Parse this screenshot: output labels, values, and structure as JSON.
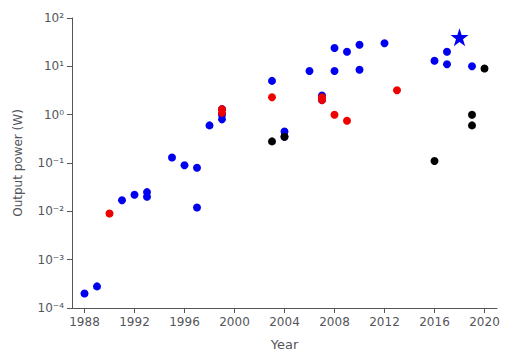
{
  "chart_data": {
    "type": "scatter",
    "xlabel": "Year",
    "ylabel": "Output power (W)",
    "log": "y",
    "grid": false,
    "xlim": [
      1987,
      2021
    ],
    "ylim": [
      0.0001,
      100
    ],
    "xticks": [
      1988,
      1992,
      1996,
      2000,
      2004,
      2008,
      2012,
      2016,
      2020
    ],
    "yticks": [
      {
        "value": 0.0001,
        "label": "10⁻⁴"
      },
      {
        "value": 0.001,
        "label": "10⁻³"
      },
      {
        "value": 0.01,
        "label": "10⁻²"
      },
      {
        "value": 0.1,
        "label": "10⁻¹"
      },
      {
        "value": 1,
        "label": "10⁰"
      },
      {
        "value": 10,
        "label": "10¹"
      },
      {
        "value": 100,
        "label": "10²"
      }
    ],
    "series": [
      {
        "color": "#0000EE",
        "marker": "circle",
        "x": [
          1988,
          1989,
          1991,
          1992,
          1993,
          1993,
          1995,
          1996,
          1997,
          1997,
          1998,
          1999,
          1999,
          1999,
          2003,
          2004,
          2004,
          2006,
          2007,
          2007,
          2008,
          2008,
          2009,
          2010,
          2010,
          2012,
          2016,
          2017,
          2017,
          2019
        ],
        "values": [
          0.0002,
          0.00028,
          0.017,
          0.022,
          0.025,
          0.02,
          0.13,
          0.09,
          0.08,
          0.012,
          0.6,
          0.8,
          1.0,
          1.3,
          5.0,
          0.35,
          0.45,
          8.0,
          2.5,
          2.0,
          24,
          8.0,
          20,
          8.5,
          28,
          30,
          13,
          11,
          20,
          10
        ]
      },
      {
        "color": "#0000EE",
        "marker": "star",
        "x": [
          2018
        ],
        "values": [
          40
        ]
      },
      {
        "color": "#EE0000",
        "marker": "circle",
        "x": [
          1990,
          1999,
          1999,
          2003,
          2007,
          2007,
          2008,
          2009,
          2013
        ],
        "values": [
          0.009,
          1.3,
          1.1,
          2.3,
          2.3,
          2.0,
          1.0,
          0.75,
          3.2
        ]
      },
      {
        "color": "#000000",
        "marker": "circle",
        "x": [
          2003,
          2004,
          2016,
          2019,
          2019,
          2020
        ],
        "values": [
          0.28,
          0.35,
          0.11,
          1.0,
          0.6,
          9.0
        ]
      }
    ]
  }
}
